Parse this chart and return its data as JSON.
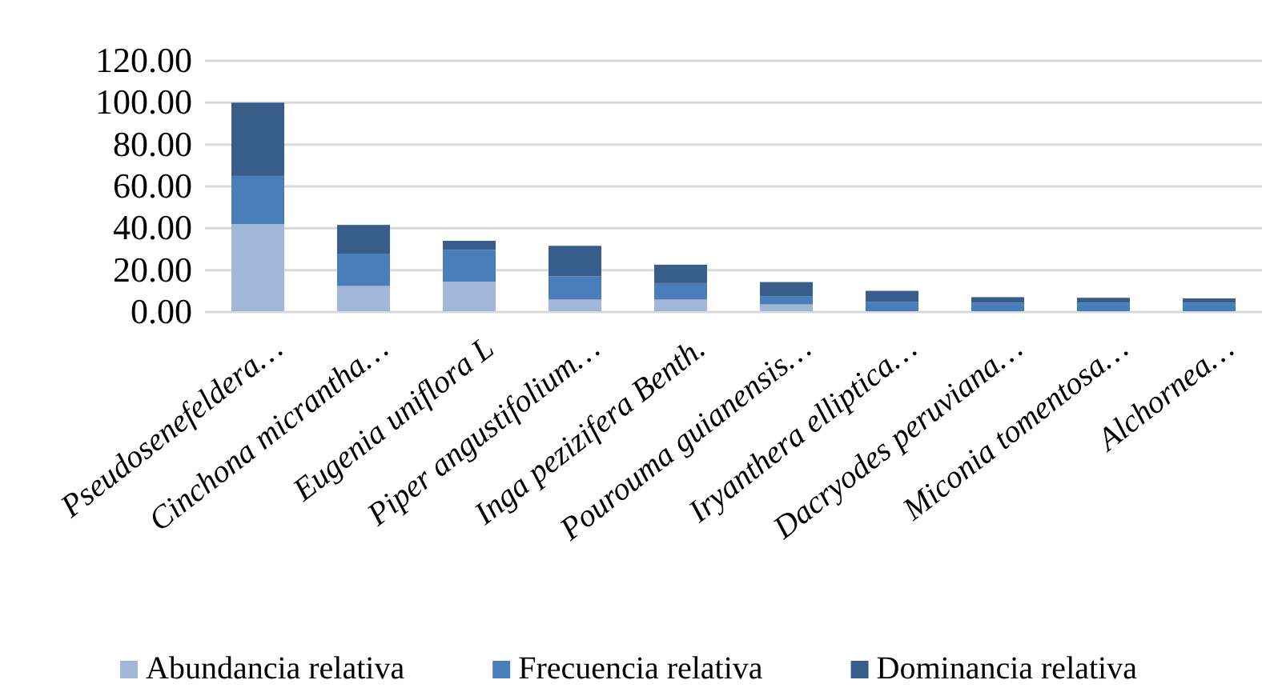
{
  "chart_data": {
    "type": "bar",
    "stacked": true,
    "categories": [
      "Pseudosenefeldera…",
      "Cinchona micrantha…",
      "Eugenia uniflora L",
      "Piper angustifolium…",
      "Inga pezizifera Benth.",
      "Pourouma guianensis…",
      "Iryanthera elliptica…",
      "Dacryodes peruviana…",
      "Miconia tomentosa…",
      "Alchornea…"
    ],
    "series": [
      {
        "name": "Abundancia relativa",
        "color": "#a2b6d8",
        "values": [
          42,
          12.4,
          14.5,
          5.9,
          5.9,
          3.6,
          null,
          null,
          null,
          null
        ]
      },
      {
        "name": "Frecuencia relativa",
        "color": "#4a7ebb",
        "values": [
          23,
          15.2,
          15.2,
          11.2,
          7.9,
          4,
          4.9,
          4.5,
          4.5,
          4.5
        ]
      },
      {
        "name": "Dominancia relativa",
        "color": "#385d8a",
        "values": [
          35,
          14,
          4.3,
          14.5,
          8.8,
          6.7,
          5.2,
          2.6,
          2.3,
          2
        ]
      }
    ],
    "ylim": [
      0,
      120
    ],
    "yticks": [
      {
        "value": 0,
        "label": "0.00"
      },
      {
        "value": 20,
        "label": "20.00"
      },
      {
        "value": 40,
        "label": "40.00"
      },
      {
        "value": 60,
        "label": "60.00"
      },
      {
        "value": 80,
        "label": "80.00"
      },
      {
        "value": 100,
        "label": "100.00"
      },
      {
        "value": 120,
        "label": "120.00"
      }
    ],
    "grid": "y",
    "legend": "bottom"
  }
}
